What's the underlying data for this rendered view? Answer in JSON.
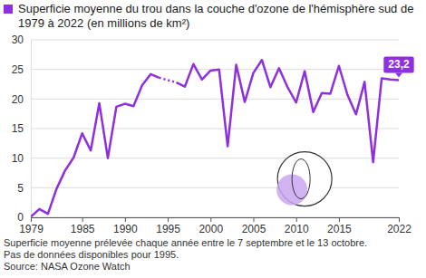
{
  "chart_data": {
    "type": "line",
    "title": "Superficie moyenne du trou dans la couche d'ozone de l'hémisphère sud de 1979 à 2022 (en millions de km²)",
    "x": [
      1979,
      1980,
      1981,
      1982,
      1983,
      1984,
      1985,
      1986,
      1987,
      1988,
      1989,
      1990,
      1991,
      1992,
      1993,
      1994,
      1995,
      1996,
      1997,
      1998,
      1999,
      2000,
      2001,
      2002,
      2003,
      2004,
      2005,
      2006,
      2007,
      2008,
      2009,
      2010,
      2011,
      2012,
      2013,
      2014,
      2015,
      2016,
      2017,
      2018,
      2019,
      2020,
      2021,
      2022
    ],
    "series": [
      {
        "name": "Superficie moyenne",
        "color": "#8e2fe0",
        "values": [
          0.1,
          1.4,
          0.6,
          4.8,
          7.9,
          10.1,
          14.2,
          11.3,
          19.3,
          10.0,
          18.7,
          19.2,
          18.8,
          22.3,
          24.2,
          23.6,
          null,
          22.8,
          22.1,
          25.9,
          23.3,
          24.8,
          25.0,
          12.0,
          25.8,
          19.5,
          24.4,
          26.6,
          22.0,
          25.2,
          22.0,
          19.4,
          24.7,
          17.8,
          21.0,
          20.9,
          25.6,
          20.7,
          17.4,
          22.9,
          9.3,
          23.5,
          23.3,
          23.2
        ]
      }
    ],
    "xlim": [
      1979,
      2022
    ],
    "xticks": [
      1979,
      1985,
      1990,
      1995,
      2000,
      2005,
      2010,
      2015,
      2022
    ],
    "ylim": [
      0,
      30
    ],
    "yticks": [
      0,
      5,
      10,
      15,
      20,
      25,
      30
    ],
    "grid": true,
    "annotations": [
      {
        "x": 2022,
        "y": 23.2,
        "label": "23,2"
      }
    ],
    "notes": [
      "Superficie moyenne prélevée chaque année entre le 7 septembre et le 13 octobre.",
      "Pas de données disponibles pour 1995."
    ],
    "source": "Source: NASA Ozone Watch"
  }
}
